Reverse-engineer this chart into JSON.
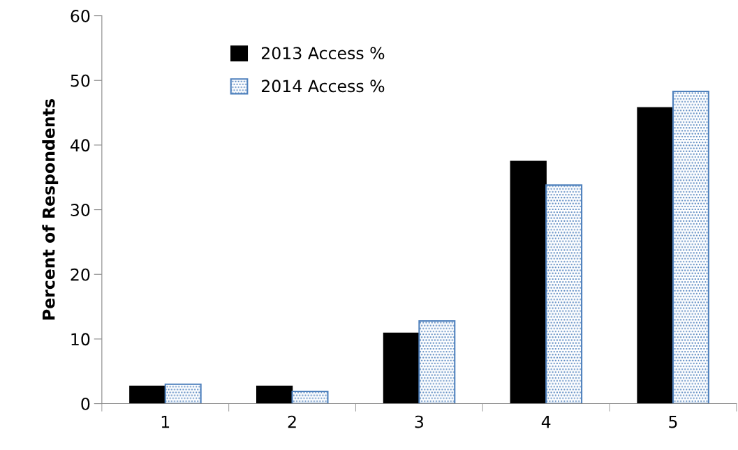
{
  "chart_data": {
    "type": "bar",
    "ylabel": "Percent of Respondents",
    "categories": [
      "1",
      "2",
      "3",
      "4",
      "5"
    ],
    "series": [
      {
        "name": "2013 Access %",
        "color": "#000000",
        "values": [
          2.7,
          2.7,
          10.9,
          37.5,
          45.8
        ]
      },
      {
        "name": "2014 Access %",
        "color": "#4f81bd",
        "values": [
          3.0,
          1.9,
          12.8,
          33.8,
          48.3
        ]
      }
    ],
    "ylim": [
      0,
      60
    ],
    "yticks": [
      0,
      10,
      20,
      30,
      40,
      50,
      60
    ],
    "grid": false,
    "legend": "top left"
  }
}
